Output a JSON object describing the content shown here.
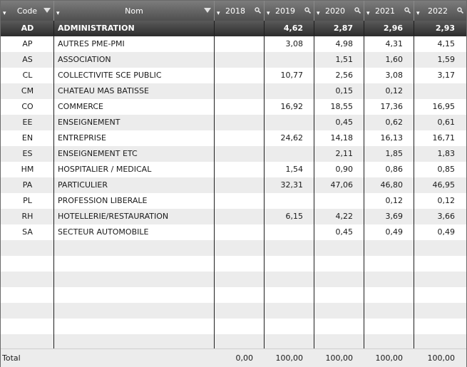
{
  "columns": {
    "code": "Code",
    "nom": "Nom",
    "y2018": "2018",
    "y2019": "2019",
    "y2020": "2020",
    "y2021": "2021",
    "y2022": "2022"
  },
  "rows": [
    {
      "code": "AD",
      "nom": "ADMINISTRATION",
      "y2018": "",
      "y2019": "4,62",
      "y2020": "2,87",
      "y2021": "2,96",
      "y2022": "2,93"
    },
    {
      "code": "AP",
      "nom": "AUTRES PME-PMI",
      "y2018": "",
      "y2019": "3,08",
      "y2020": "4,98",
      "y2021": "4,31",
      "y2022": "4,15"
    },
    {
      "code": "AS",
      "nom": "ASSOCIATION",
      "y2018": "",
      "y2019": "",
      "y2020": "1,51",
      "y2021": "1,60",
      "y2022": "1,59"
    },
    {
      "code": "CL",
      "nom": "COLLECTIVITE SCE PUBLIC",
      "y2018": "",
      "y2019": "10,77",
      "y2020": "2,56",
      "y2021": "3,08",
      "y2022": "3,17"
    },
    {
      "code": "CM",
      "nom": "CHATEAU MAS BATISSE",
      "y2018": "",
      "y2019": "",
      "y2020": "0,15",
      "y2021": "0,12",
      "y2022": ""
    },
    {
      "code": "CO",
      "nom": "COMMERCE",
      "y2018": "",
      "y2019": "16,92",
      "y2020": "18,55",
      "y2021": "17,36",
      "y2022": "16,95"
    },
    {
      "code": "EE",
      "nom": "ENSEIGNEMENT",
      "y2018": "",
      "y2019": "",
      "y2020": "0,45",
      "y2021": "0,62",
      "y2022": "0,61"
    },
    {
      "code": "EN",
      "nom": "ENTREPRISE",
      "y2018": "",
      "y2019": "24,62",
      "y2020": "14,18",
      "y2021": "16,13",
      "y2022": "16,71"
    },
    {
      "code": "ES",
      "nom": "ENSEIGNEMENT ETC",
      "y2018": "",
      "y2019": "",
      "y2020": "2,11",
      "y2021": "1,85",
      "y2022": "1,83"
    },
    {
      "code": "HM",
      "nom": "HOSPITALIER / MEDICAL",
      "y2018": "",
      "y2019": "1,54",
      "y2020": "0,90",
      "y2021": "0,86",
      "y2022": "0,85"
    },
    {
      "code": "PA",
      "nom": "PARTICULIER",
      "y2018": "",
      "y2019": "32,31",
      "y2020": "47,06",
      "y2021": "46,80",
      "y2022": "46,95"
    },
    {
      "code": "PL",
      "nom": "PROFESSION LIBERALE",
      "y2018": "",
      "y2019": "",
      "y2020": "",
      "y2021": "0,12",
      "y2022": "0,12"
    },
    {
      "code": "RH",
      "nom": "HOTELLERIE/RESTAURATION",
      "y2018": "",
      "y2019": "6,15",
      "y2020": "4,22",
      "y2021": "3,69",
      "y2022": "3,66"
    },
    {
      "code": "SA",
      "nom": "SECTEUR AUTOMOBILE",
      "y2018": "",
      "y2019": "",
      "y2020": "0,45",
      "y2021": "0,49",
      "y2022": "0,49"
    }
  ],
  "footer": {
    "label": "Total",
    "y2018": "0,00",
    "y2019": "100,00",
    "y2020": "100,00",
    "y2021": "100,00",
    "y2022": "100,00"
  }
}
